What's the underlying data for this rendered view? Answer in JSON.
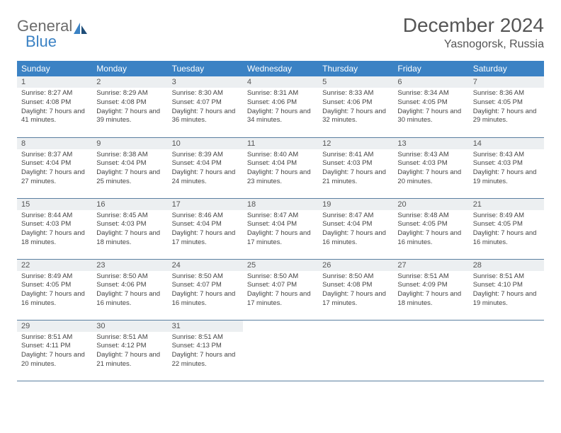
{
  "logo": {
    "word1": "General",
    "word2": "Blue"
  },
  "title": "December 2024",
  "location": "Yasnogorsk, Russia",
  "colors": {
    "header_bg": "#3b82c4",
    "header_text": "#ffffff",
    "daynum_bg": "#eceff1",
    "border": "#5a7fa0",
    "body_text": "#444444",
    "logo_gray": "#6b6b6b",
    "logo_blue": "#3b82c4"
  },
  "dayHeaders": [
    "Sunday",
    "Monday",
    "Tuesday",
    "Wednesday",
    "Thursday",
    "Friday",
    "Saturday"
  ],
  "weeks": [
    [
      {
        "n": "1",
        "sr": "8:27 AM",
        "ss": "4:08 PM",
        "dl": "7 hours and 41 minutes."
      },
      {
        "n": "2",
        "sr": "8:29 AM",
        "ss": "4:08 PM",
        "dl": "7 hours and 39 minutes."
      },
      {
        "n": "3",
        "sr": "8:30 AM",
        "ss": "4:07 PM",
        "dl": "7 hours and 36 minutes."
      },
      {
        "n": "4",
        "sr": "8:31 AM",
        "ss": "4:06 PM",
        "dl": "7 hours and 34 minutes."
      },
      {
        "n": "5",
        "sr": "8:33 AM",
        "ss": "4:06 PM",
        "dl": "7 hours and 32 minutes."
      },
      {
        "n": "6",
        "sr": "8:34 AM",
        "ss": "4:05 PM",
        "dl": "7 hours and 30 minutes."
      },
      {
        "n": "7",
        "sr": "8:36 AM",
        "ss": "4:05 PM",
        "dl": "7 hours and 29 minutes."
      }
    ],
    [
      {
        "n": "8",
        "sr": "8:37 AM",
        "ss": "4:04 PM",
        "dl": "7 hours and 27 minutes."
      },
      {
        "n": "9",
        "sr": "8:38 AM",
        "ss": "4:04 PM",
        "dl": "7 hours and 25 minutes."
      },
      {
        "n": "10",
        "sr": "8:39 AM",
        "ss": "4:04 PM",
        "dl": "7 hours and 24 minutes."
      },
      {
        "n": "11",
        "sr": "8:40 AM",
        "ss": "4:04 PM",
        "dl": "7 hours and 23 minutes."
      },
      {
        "n": "12",
        "sr": "8:41 AM",
        "ss": "4:03 PM",
        "dl": "7 hours and 21 minutes."
      },
      {
        "n": "13",
        "sr": "8:43 AM",
        "ss": "4:03 PM",
        "dl": "7 hours and 20 minutes."
      },
      {
        "n": "14",
        "sr": "8:43 AM",
        "ss": "4:03 PM",
        "dl": "7 hours and 19 minutes."
      }
    ],
    [
      {
        "n": "15",
        "sr": "8:44 AM",
        "ss": "4:03 PM",
        "dl": "7 hours and 18 minutes."
      },
      {
        "n": "16",
        "sr": "8:45 AM",
        "ss": "4:03 PM",
        "dl": "7 hours and 18 minutes."
      },
      {
        "n": "17",
        "sr": "8:46 AM",
        "ss": "4:04 PM",
        "dl": "7 hours and 17 minutes."
      },
      {
        "n": "18",
        "sr": "8:47 AM",
        "ss": "4:04 PM",
        "dl": "7 hours and 17 minutes."
      },
      {
        "n": "19",
        "sr": "8:47 AM",
        "ss": "4:04 PM",
        "dl": "7 hours and 16 minutes."
      },
      {
        "n": "20",
        "sr": "8:48 AM",
        "ss": "4:05 PM",
        "dl": "7 hours and 16 minutes."
      },
      {
        "n": "21",
        "sr": "8:49 AM",
        "ss": "4:05 PM",
        "dl": "7 hours and 16 minutes."
      }
    ],
    [
      {
        "n": "22",
        "sr": "8:49 AM",
        "ss": "4:05 PM",
        "dl": "7 hours and 16 minutes."
      },
      {
        "n": "23",
        "sr": "8:50 AM",
        "ss": "4:06 PM",
        "dl": "7 hours and 16 minutes."
      },
      {
        "n": "24",
        "sr": "8:50 AM",
        "ss": "4:07 PM",
        "dl": "7 hours and 16 minutes."
      },
      {
        "n": "25",
        "sr": "8:50 AM",
        "ss": "4:07 PM",
        "dl": "7 hours and 17 minutes."
      },
      {
        "n": "26",
        "sr": "8:50 AM",
        "ss": "4:08 PM",
        "dl": "7 hours and 17 minutes."
      },
      {
        "n": "27",
        "sr": "8:51 AM",
        "ss": "4:09 PM",
        "dl": "7 hours and 18 minutes."
      },
      {
        "n": "28",
        "sr": "8:51 AM",
        "ss": "4:10 PM",
        "dl": "7 hours and 19 minutes."
      }
    ],
    [
      {
        "n": "29",
        "sr": "8:51 AM",
        "ss": "4:11 PM",
        "dl": "7 hours and 20 minutes."
      },
      {
        "n": "30",
        "sr": "8:51 AM",
        "ss": "4:12 PM",
        "dl": "7 hours and 21 minutes."
      },
      {
        "n": "31",
        "sr": "8:51 AM",
        "ss": "4:13 PM",
        "dl": "7 hours and 22 minutes."
      },
      null,
      null,
      null,
      null
    ]
  ],
  "labels": {
    "sunrise": "Sunrise: ",
    "sunset": "Sunset: ",
    "daylight": "Daylight: "
  }
}
